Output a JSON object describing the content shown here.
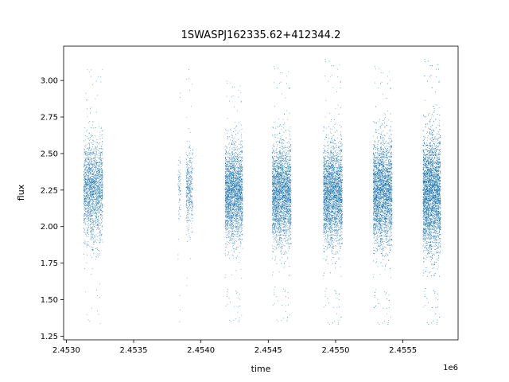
{
  "chart_data": {
    "type": "scatter",
    "title": "1SWASPJ162335.62+412344.2",
    "xlabel": "time",
    "ylabel": "flux",
    "x_offset_label": "1e6",
    "xlim": [
      2.45298,
      2.45591
    ],
    "ylim": [
      1.225,
      3.235
    ],
    "x_ticks": [
      2.453,
      2.4535,
      2.454,
      2.4545,
      2.455,
      2.4555
    ],
    "x_tick_labels": [
      "2.4530",
      "2.4535",
      "2.4540",
      "2.4545",
      "2.4550",
      "2.4555"
    ],
    "y_ticks": [
      1.25,
      1.5,
      1.75,
      2.0,
      2.25,
      2.5,
      2.75,
      3.0
    ],
    "y_tick_labels": [
      "1.25",
      "1.50",
      "1.75",
      "2.00",
      "2.25",
      "2.50",
      "2.75",
      "3.00"
    ],
    "grid": false,
    "marker_color": "#1f77b4",
    "series": [
      {
        "seasons": [
          {
            "x_start": 2.45313,
            "x_end": 2.45327,
            "y_center": 2.25,
            "y_spread": 0.17,
            "y_min": 1.33,
            "y_max": 3.15,
            "n_points": 2000
          },
          {
            "x_start": 2.45383,
            "x_end": 2.45385,
            "y_center": 2.25,
            "y_spread": 0.12,
            "y_min": 1.31,
            "y_max": 2.95,
            "n_points": 80
          },
          {
            "x_start": 2.45389,
            "x_end": 2.45394,
            "y_center": 2.25,
            "y_spread": 0.14,
            "y_min": 1.4,
            "y_max": 3.12,
            "n_points": 400
          },
          {
            "x_start": 2.45418,
            "x_end": 2.45431,
            "y_center": 2.23,
            "y_spread": 0.16,
            "y_min": 1.33,
            "y_max": 3.0,
            "n_points": 2600
          },
          {
            "x_start": 2.45453,
            "x_end": 2.45467,
            "y_center": 2.22,
            "y_spread": 0.17,
            "y_min": 1.33,
            "y_max": 3.1,
            "n_points": 3000
          },
          {
            "x_start": 2.45491,
            "x_end": 2.45505,
            "y_center": 2.22,
            "y_spread": 0.17,
            "y_min": 1.31,
            "y_max": 3.15,
            "n_points": 3200
          },
          {
            "x_start": 2.45528,
            "x_end": 2.45542,
            "y_center": 2.23,
            "y_spread": 0.18,
            "y_min": 1.31,
            "y_max": 3.1,
            "n_points": 3400
          },
          {
            "x_start": 2.45565,
            "x_end": 2.45578,
            "y_center": 2.22,
            "y_spread": 0.2,
            "y_min": 1.31,
            "y_max": 3.15,
            "n_points": 4200
          }
        ]
      }
    ]
  }
}
